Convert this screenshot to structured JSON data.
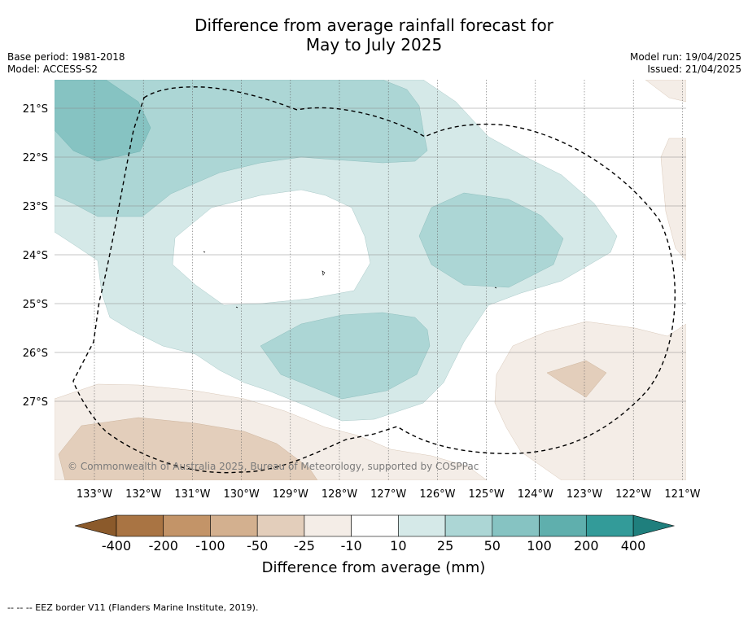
{
  "title": {
    "line1": "Difference from average rainfall forecast for",
    "line2": "May to July 2025"
  },
  "meta": {
    "base_period": "Base period: 1981-2018",
    "model": "Model: ACCESS-S2",
    "model_run": "Model run: 19/04/2025",
    "issued": "Issued: 21/04/2025"
  },
  "map": {
    "lat_labels": [
      "21°S",
      "22°S",
      "23°S",
      "24°S",
      "25°S",
      "26°S",
      "27°S"
    ],
    "lon_labels": [
      "133°W",
      "132°W",
      "131°W",
      "130°W",
      "129°W",
      "128°W",
      "127°W",
      "126°W",
      "125°W",
      "124°W",
      "123°W",
      "122°W",
      "121°W"
    ],
    "copyright": "© Commonwealth of Australia 2025, Bureau of Meteorology, supported by COSPPac"
  },
  "legend": {
    "ticks": [
      "-400",
      "-200",
      "-100",
      "-50",
      "-25",
      "-10",
      "10",
      "25",
      "50",
      "100",
      "200",
      "400"
    ],
    "colors": [
      "#a97443",
      "#c39468",
      "#d3b08f",
      "#e3cebb",
      "#f4ede7",
      "#ffffff",
      "#d5e9e8",
      "#acd6d5",
      "#86c3c2",
      "#5fafad",
      "#339b99"
    ],
    "low_arrow_color": "#8b5a2b",
    "high_arrow_color": "#1f7f7d",
    "label": "Difference from average (mm)"
  },
  "footer": {
    "eez_note": "--  --  -- EEZ border V11 (Flanders Marine Institute, 2019)."
  }
}
